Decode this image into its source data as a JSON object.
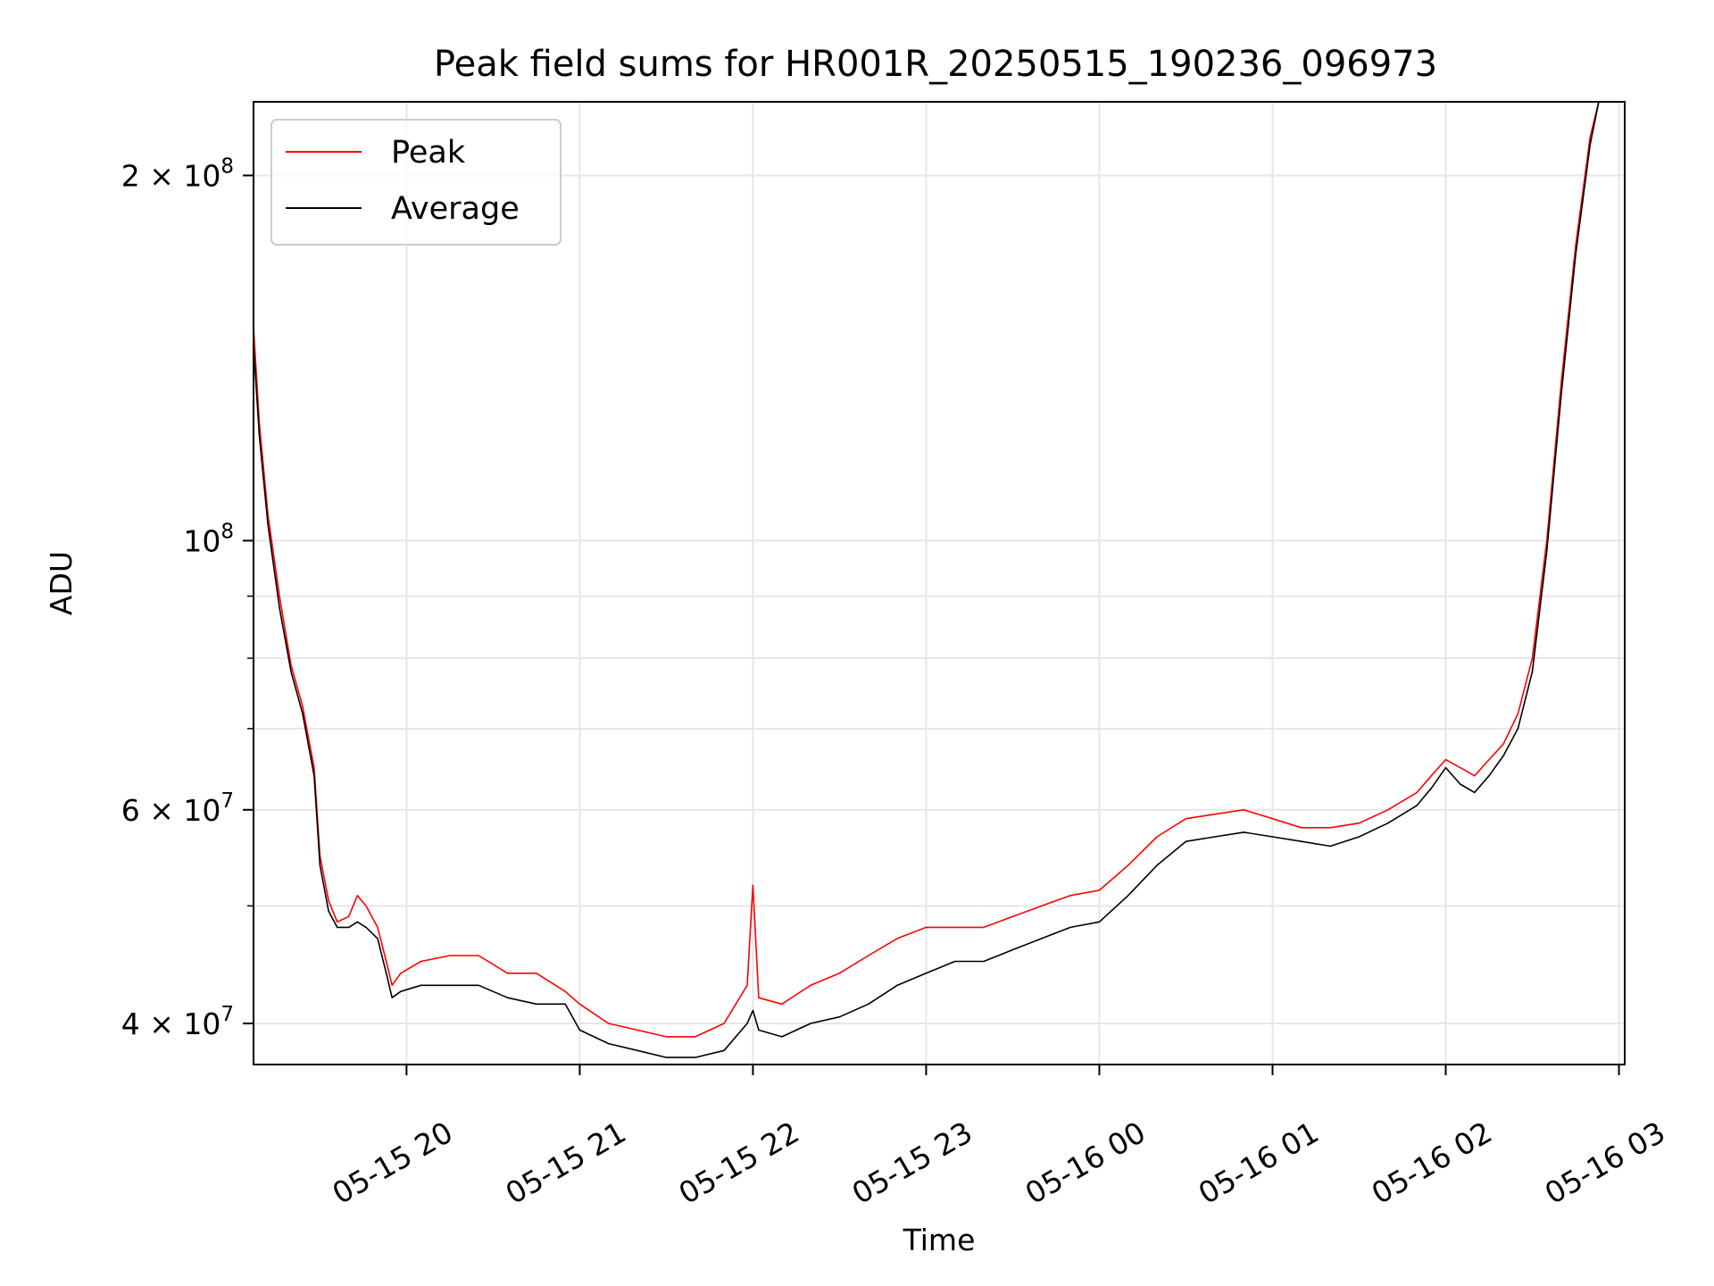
{
  "chart_data": {
    "type": "line",
    "title": "Peak field sums for HR001R_20250515_190236_096973",
    "xlabel": "Time",
    "ylabel": "ADU",
    "yscale": "log",
    "xlim": [
      "2025-05-15 19:07",
      "2025-05-16 03:02"
    ],
    "ylim": [
      37000000,
      230000000
    ],
    "grid": true,
    "legend_position": "top-left",
    "x_ticks": [
      {
        "t": "2025-05-15 20:00",
        "label": "05-15 20"
      },
      {
        "t": "2025-05-15 21:00",
        "label": "05-15 21"
      },
      {
        "t": "2025-05-15 22:00",
        "label": "05-15 22"
      },
      {
        "t": "2025-05-15 23:00",
        "label": "05-15 23"
      },
      {
        "t": "2025-05-16 00:00",
        "label": "05-16 00"
      },
      {
        "t": "2025-05-16 01:00",
        "label": "05-16 01"
      },
      {
        "t": "2025-05-16 02:00",
        "label": "05-16 02"
      },
      {
        "t": "2025-05-16 03:00",
        "label": "05-16 03"
      }
    ],
    "y_ticks_major": [
      {
        "value": 40000000,
        "base": "4 × 10",
        "exp": "7"
      },
      {
        "value": 60000000,
        "base": "6 × 10",
        "exp": "7"
      },
      {
        "value": 100000000,
        "base": "10",
        "exp": "8"
      },
      {
        "value": 200000000,
        "base": "2 × 10",
        "exp": "8"
      }
    ],
    "y_ticks_minor": [
      50000000,
      70000000,
      80000000,
      90000000
    ],
    "series": [
      {
        "name": "Peak",
        "color": "#ff0000",
        "x": [
          "2025-05-15 19:07",
          "2025-05-15 19:09",
          "2025-05-15 19:12",
          "2025-05-15 19:16",
          "2025-05-15 19:20",
          "2025-05-15 19:24",
          "2025-05-15 19:28",
          "2025-05-15 19:30",
          "2025-05-15 19:33",
          "2025-05-15 19:36",
          "2025-05-15 19:40",
          "2025-05-15 19:43",
          "2025-05-15 19:46",
          "2025-05-15 19:50",
          "2025-05-15 19:53",
          "2025-05-15 19:55",
          "2025-05-15 19:58",
          "2025-05-15 20:05",
          "2025-05-15 20:15",
          "2025-05-15 20:25",
          "2025-05-15 20:35",
          "2025-05-15 20:45",
          "2025-05-15 20:55",
          "2025-05-15 21:00",
          "2025-05-15 21:10",
          "2025-05-15 21:20",
          "2025-05-15 21:30",
          "2025-05-15 21:40",
          "2025-05-15 21:50",
          "2025-05-15 21:58",
          "2025-05-15 22:00",
          "2025-05-15 22:02",
          "2025-05-15 22:10",
          "2025-05-15 22:20",
          "2025-05-15 22:30",
          "2025-05-15 22:40",
          "2025-05-15 22:50",
          "2025-05-15 23:00",
          "2025-05-15 23:10",
          "2025-05-15 23:20",
          "2025-05-15 23:30",
          "2025-05-15 23:40",
          "2025-05-15 23:50",
          "2025-05-16 00:00",
          "2025-05-16 00:10",
          "2025-05-16 00:20",
          "2025-05-16 00:30",
          "2025-05-16 00:40",
          "2025-05-16 00:50",
          "2025-05-16 01:00",
          "2025-05-16 01:10",
          "2025-05-16 01:20",
          "2025-05-16 01:30",
          "2025-05-16 01:40",
          "2025-05-16 01:50",
          "2025-05-16 01:55",
          "2025-05-16 02:00",
          "2025-05-16 02:05",
          "2025-05-16 02:10",
          "2025-05-16 02:15",
          "2025-05-16 02:20",
          "2025-05-16 02:25",
          "2025-05-16 02:30",
          "2025-05-16 02:35",
          "2025-05-16 02:40",
          "2025-05-16 02:45",
          "2025-05-16 02:50",
          "2025-05-16 02:53"
        ],
        "y": [
          150000000,
          125000000,
          105000000,
          90000000,
          79000000,
          73000000,
          65000000,
          55000000,
          50500000,
          48500000,
          49000000,
          51000000,
          50000000,
          48000000,
          45000000,
          43000000,
          44000000,
          45000000,
          45500000,
          45500000,
          44000000,
          44000000,
          42500000,
          41500000,
          40000000,
          39500000,
          39000000,
          39000000,
          40000000,
          43000000,
          52000000,
          42000000,
          41500000,
          43000000,
          44000000,
          45500000,
          47000000,
          48000000,
          48000000,
          48000000,
          49000000,
          50000000,
          51000000,
          51500000,
          54000000,
          57000000,
          59000000,
          59500000,
          60000000,
          59000000,
          58000000,
          58000000,
          58500000,
          60000000,
          62000000,
          64000000,
          66000000,
          65000000,
          64000000,
          66000000,
          68000000,
          72000000,
          80000000,
          100000000,
          135000000,
          175000000,
          215000000,
          230000000
        ]
      },
      {
        "name": "Average",
        "color": "#000000",
        "x": [
          "2025-05-15 19:07",
          "2025-05-15 19:09",
          "2025-05-15 19:12",
          "2025-05-15 19:16",
          "2025-05-15 19:20",
          "2025-05-15 19:24",
          "2025-05-15 19:28",
          "2025-05-15 19:30",
          "2025-05-15 19:33",
          "2025-05-15 19:36",
          "2025-05-15 19:40",
          "2025-05-15 19:43",
          "2025-05-15 19:46",
          "2025-05-15 19:50",
          "2025-05-15 19:53",
          "2025-05-15 19:55",
          "2025-05-15 19:58",
          "2025-05-15 20:05",
          "2025-05-15 20:15",
          "2025-05-15 20:25",
          "2025-05-15 20:35",
          "2025-05-15 20:45",
          "2025-05-15 20:55",
          "2025-05-15 21:00",
          "2025-05-15 21:10",
          "2025-05-15 21:20",
          "2025-05-15 21:30",
          "2025-05-15 21:40",
          "2025-05-15 21:50",
          "2025-05-15 21:58",
          "2025-05-15 22:00",
          "2025-05-15 22:02",
          "2025-05-15 22:10",
          "2025-05-15 22:20",
          "2025-05-15 22:30",
          "2025-05-15 22:40",
          "2025-05-15 22:50",
          "2025-05-15 23:00",
          "2025-05-15 23:10",
          "2025-05-15 23:20",
          "2025-05-15 23:30",
          "2025-05-15 23:40",
          "2025-05-15 23:50",
          "2025-05-16 00:00",
          "2025-05-16 00:10",
          "2025-05-16 00:20",
          "2025-05-16 00:30",
          "2025-05-16 00:40",
          "2025-05-16 00:50",
          "2025-05-16 01:00",
          "2025-05-16 01:10",
          "2025-05-16 01:20",
          "2025-05-16 01:30",
          "2025-05-16 01:40",
          "2025-05-16 01:50",
          "2025-05-16 01:55",
          "2025-05-16 02:00",
          "2025-05-16 02:05",
          "2025-05-16 02:10",
          "2025-05-16 02:15",
          "2025-05-16 02:20",
          "2025-05-16 02:25",
          "2025-05-16 02:30",
          "2025-05-16 02:35",
          "2025-05-16 02:40",
          "2025-05-16 02:45",
          "2025-05-16 02:50",
          "2025-05-16 02:53"
        ],
        "y": [
          145000000,
          122000000,
          103000000,
          88000000,
          78000000,
          72000000,
          64000000,
          54000000,
          49500000,
          48000000,
          48000000,
          48500000,
          48000000,
          47000000,
          44000000,
          42000000,
          42500000,
          43000000,
          43000000,
          43000000,
          42000000,
          41500000,
          41500000,
          39500000,
          38500000,
          38000000,
          37500000,
          37500000,
          38000000,
          40000000,
          41000000,
          39500000,
          39000000,
          40000000,
          40500000,
          41500000,
          43000000,
          44000000,
          45000000,
          45000000,
          46000000,
          47000000,
          48000000,
          48500000,
          51000000,
          54000000,
          56500000,
          57000000,
          57500000,
          57000000,
          56500000,
          56000000,
          57000000,
          58500000,
          60500000,
          62500000,
          65000000,
          63000000,
          62000000,
          64000000,
          66500000,
          70000000,
          78000000,
          98000000,
          132000000,
          172000000,
          212000000,
          230000000
        ]
      }
    ]
  }
}
